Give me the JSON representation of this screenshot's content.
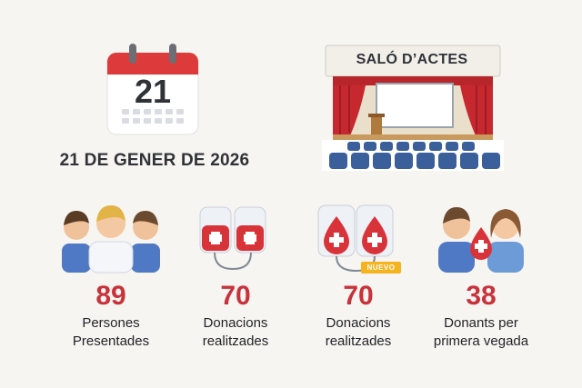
{
  "event": {
    "calendar_day": "21",
    "date_text": "21 DE GENER DE 2026",
    "venue_label": "SALÓ D’ACTES"
  },
  "stats": [
    {
      "value": "89",
      "label_line1": "Persones",
      "label_line2": "Presentades",
      "icon": "people-group-icon"
    },
    {
      "value": "70",
      "label_line1": "Donacions",
      "label_line2": "realitzades",
      "icon": "blood-bags-icon"
    },
    {
      "value": "70",
      "label_line1": "Donacions",
      "label_line2": "realitzades",
      "icon": "blood-bags-new-icon",
      "badge": "NUEVO"
    },
    {
      "value": "38",
      "label_line1": "Donants per",
      "label_line2": "primera vegada",
      "icon": "first-time-donors-icon"
    }
  ],
  "colors": {
    "accent_red": "#c8323a",
    "badge_yellow": "#f5b31d",
    "seat_blue": "#3b5f9a",
    "background": "#f7f5f1"
  }
}
